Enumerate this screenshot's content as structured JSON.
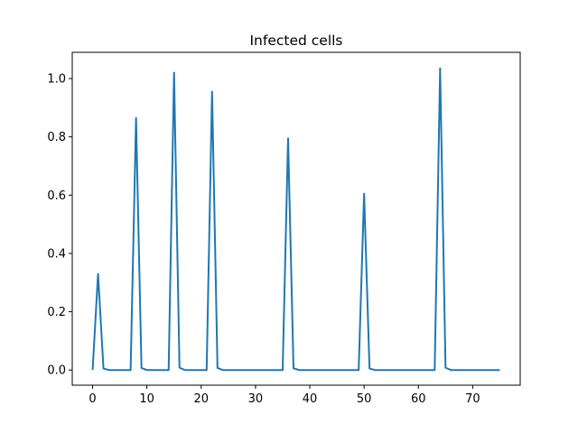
{
  "chart_data": {
    "type": "line",
    "title": "Infected cells",
    "xlabel": "",
    "ylabel": "",
    "xlim": [
      -3.75,
      78.75
    ],
    "ylim": [
      -0.052,
      1.09
    ],
    "xticks": [
      0,
      10,
      20,
      30,
      40,
      50,
      60,
      70
    ],
    "yticks": [
      0.0,
      0.2,
      0.4,
      0.6,
      0.8,
      1.0
    ],
    "yticks_text": [
      "0.0",
      "0.2",
      "0.4",
      "0.6",
      "0.8",
      "1.0"
    ],
    "grid": false,
    "series": [
      {
        "color": "#1f77b4",
        "x": [
          0,
          1,
          2,
          3,
          4,
          5,
          6,
          7,
          8,
          9,
          10,
          11,
          12,
          13,
          14,
          15,
          16,
          17,
          18,
          19,
          20,
          21,
          22,
          23,
          24,
          25,
          26,
          27,
          28,
          29,
          30,
          31,
          32,
          33,
          34,
          35,
          36,
          37,
          38,
          39,
          40,
          41,
          42,
          43,
          44,
          45,
          46,
          47,
          48,
          49,
          50,
          51,
          52,
          53,
          54,
          55,
          56,
          57,
          58,
          59,
          60,
          61,
          62,
          63,
          64,
          65,
          66,
          67,
          68,
          69,
          70,
          71,
          72,
          73,
          74,
          75
        ],
        "y": [
          0,
          0.33,
          0.005,
          0,
          0,
          0,
          0,
          0,
          0.865,
          0.007,
          0,
          0,
          0,
          0,
          0,
          1.02,
          0.008,
          0,
          0,
          0,
          0,
          0,
          0.955,
          0.007,
          0,
          0,
          0,
          0,
          0,
          0,
          0,
          0,
          0,
          0,
          0,
          0,
          0.795,
          0.006,
          0,
          0,
          0,
          0,
          0,
          0,
          0,
          0,
          0,
          0,
          0,
          0,
          0.605,
          0.005,
          0,
          0,
          0,
          0,
          0,
          0,
          0,
          0,
          0,
          0,
          0,
          0,
          1.035,
          0.008,
          0,
          0,
          0,
          0,
          0,
          0,
          0,
          0,
          0,
          0
        ]
      }
    ]
  }
}
